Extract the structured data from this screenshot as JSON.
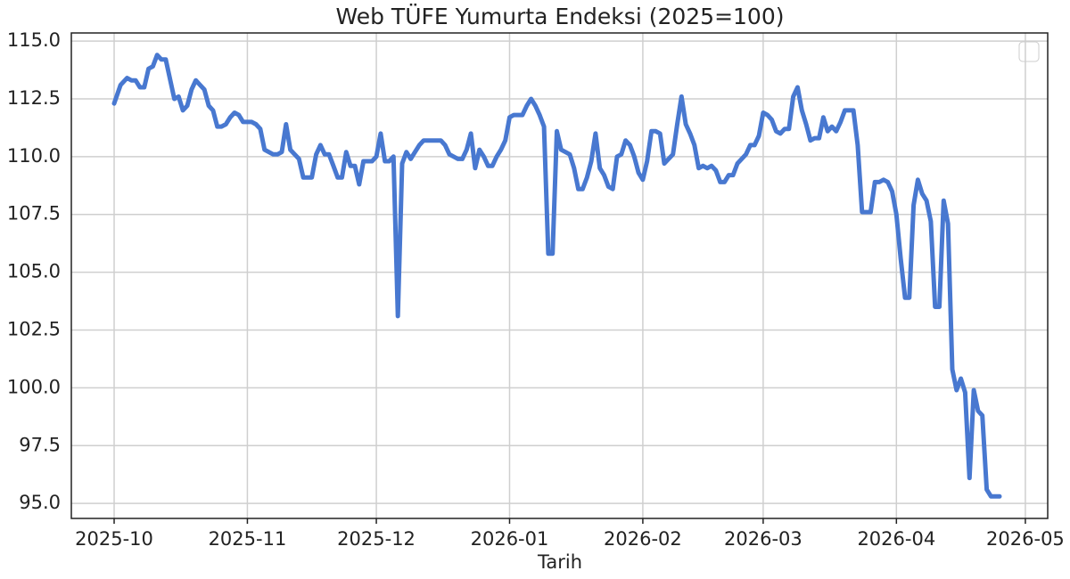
{
  "chart_data": {
    "type": "line",
    "title": "Web TÜFE Yumurta Endeksi (2025=100)",
    "x_label": "Tarih",
    "x": [
      0,
      1.5,
      3,
      4,
      5,
      6,
      7,
      8,
      9,
      10,
      11,
      12,
      14,
      15,
      16,
      17,
      18,
      19,
      20,
      21,
      22,
      23,
      24,
      25,
      26,
      27,
      28,
      29,
      30,
      32,
      33,
      34,
      35,
      36,
      37,
      38,
      39,
      40,
      41,
      42,
      43,
      44,
      46,
      47,
      48,
      49,
      50,
      51,
      52,
      53,
      54,
      55,
      56,
      57,
      58,
      60,
      61,
      62,
      63,
      64,
      65,
      66,
      67,
      68,
      69,
      70,
      71,
      72,
      74,
      76,
      77,
      78,
      80,
      81,
      82,
      83,
      84,
      85,
      86,
      87,
      88,
      89,
      90,
      91,
      92,
      93,
      95,
      96,
      97,
      98,
      99,
      100,
      101,
      102,
      103,
      104,
      105,
      106,
      107,
      108,
      109,
      110,
      111,
      112,
      113,
      114,
      115,
      116,
      117,
      118,
      119,
      120,
      121,
      122,
      123,
      124,
      125,
      126,
      127,
      128,
      129,
      130,
      131,
      132,
      133,
      134,
      135,
      136,
      137,
      138,
      139,
      140,
      141,
      142,
      143,
      144,
      145,
      146,
      147,
      148,
      149,
      150,
      151,
      152,
      153,
      154,
      155,
      156,
      157,
      158,
      159,
      160,
      161,
      162,
      163,
      164,
      165,
      166,
      167,
      168,
      169,
      170,
      171,
      172,
      173,
      174,
      175,
      176,
      177,
      178,
      179,
      180,
      181,
      182,
      183,
      184,
      185,
      186,
      187,
      188,
      189,
      190,
      191,
      192,
      193,
      194,
      195,
      196,
      197,
      198,
      199,
      200,
      201,
      202,
      203,
      204,
      206
    ],
    "values": [
      112.3,
      113.1,
      113.4,
      113.3,
      113.3,
      113.0,
      113.0,
      113.8,
      113.9,
      114.4,
      114.2,
      114.2,
      112.5,
      112.6,
      112.0,
      112.2,
      112.9,
      113.3,
      113.1,
      112.9,
      112.2,
      112.0,
      111.3,
      111.3,
      111.4,
      111.7,
      111.9,
      111.8,
      111.5,
      111.5,
      111.4,
      111.2,
      110.3,
      110.2,
      110.1,
      110.1,
      110.2,
      111.4,
      110.3,
      110.1,
      109.9,
      109.1,
      109.1,
      110.1,
      110.5,
      110.1,
      110.1,
      109.6,
      109.1,
      109.1,
      110.2,
      109.6,
      109.6,
      108.8,
      109.8,
      109.8,
      110.0,
      111.0,
      109.8,
      109.8,
      110.0,
      103.1,
      109.7,
      110.2,
      109.9,
      110.2,
      110.5,
      110.7,
      110.7,
      110.7,
      110.5,
      110.1,
      109.9,
      109.9,
      110.3,
      111.0,
      109.5,
      110.3,
      110.0,
      109.6,
      109.6,
      110.0,
      110.3,
      110.7,
      111.7,
      111.8,
      111.8,
      112.2,
      112.5,
      112.2,
      111.8,
      111.3,
      105.8,
      105.8,
      111.1,
      110.3,
      110.2,
      110.1,
      109.5,
      108.6,
      108.6,
      109.1,
      109.8,
      111.0,
      109.5,
      109.2,
      108.7,
      108.6,
      110.0,
      110.1,
      110.7,
      110.5,
      110.0,
      109.3,
      109.0,
      109.8,
      111.1,
      111.1,
      111.0,
      109.7,
      109.9,
      110.1,
      111.4,
      112.6,
      111.4,
      111.0,
      110.5,
      109.5,
      109.6,
      109.5,
      109.6,
      109.4,
      108.9,
      108.9,
      109.2,
      109.2,
      109.7,
      109.9,
      110.1,
      110.5,
      110.5,
      110.9,
      111.9,
      111.8,
      111.6,
      111.1,
      111.0,
      111.2,
      111.2,
      112.6,
      113.0,
      112.0,
      111.4,
      110.7,
      110.8,
      110.8,
      111.7,
      111.1,
      111.3,
      111.1,
      111.5,
      112.0,
      112.0,
      112.0,
      110.5,
      107.6,
      107.6,
      107.6,
      108.9,
      108.9,
      109.0,
      108.9,
      108.5,
      107.5,
      105.6,
      103.9,
      103.9,
      107.9,
      109.0,
      108.4,
      108.1,
      107.2,
      103.5,
      103.5,
      108.1,
      107.1,
      100.8,
      99.9,
      100.4,
      99.8,
      96.1,
      99.9,
      99.0,
      98.8,
      95.6,
      95.3,
      95.3
    ],
    "color": "#4878d0",
    "xlim": [
      -9.96,
      217.2
    ],
    "xticks": [
      {
        "value": 0,
        "label": "2025-10"
      },
      {
        "value": 31,
        "label": "2025-11"
      },
      {
        "value": 61,
        "label": "2025-12"
      },
      {
        "value": 92,
        "label": "2026-01"
      },
      {
        "value": 123,
        "label": "2026-02"
      },
      {
        "value": 151,
        "label": "2026-03"
      },
      {
        "value": 182,
        "label": "2026-04"
      },
      {
        "value": 212,
        "label": "2026-05"
      }
    ],
    "ylim": [
      94.35,
      115.35
    ],
    "yticks": [
      {
        "value": 95,
        "label": "95.0"
      },
      {
        "value": 97.5,
        "label": "97.5"
      },
      {
        "value": 100,
        "label": "100.0"
      },
      {
        "value": 102.5,
        "label": "102.5"
      },
      {
        "value": 105,
        "label": "105.0"
      },
      {
        "value": 107.5,
        "label": "107.5"
      },
      {
        "value": 110,
        "label": "110.0"
      },
      {
        "value": 112.5,
        "label": "112.5"
      },
      {
        "value": 115,
        "label": "115.0"
      }
    ],
    "grid": true
  }
}
